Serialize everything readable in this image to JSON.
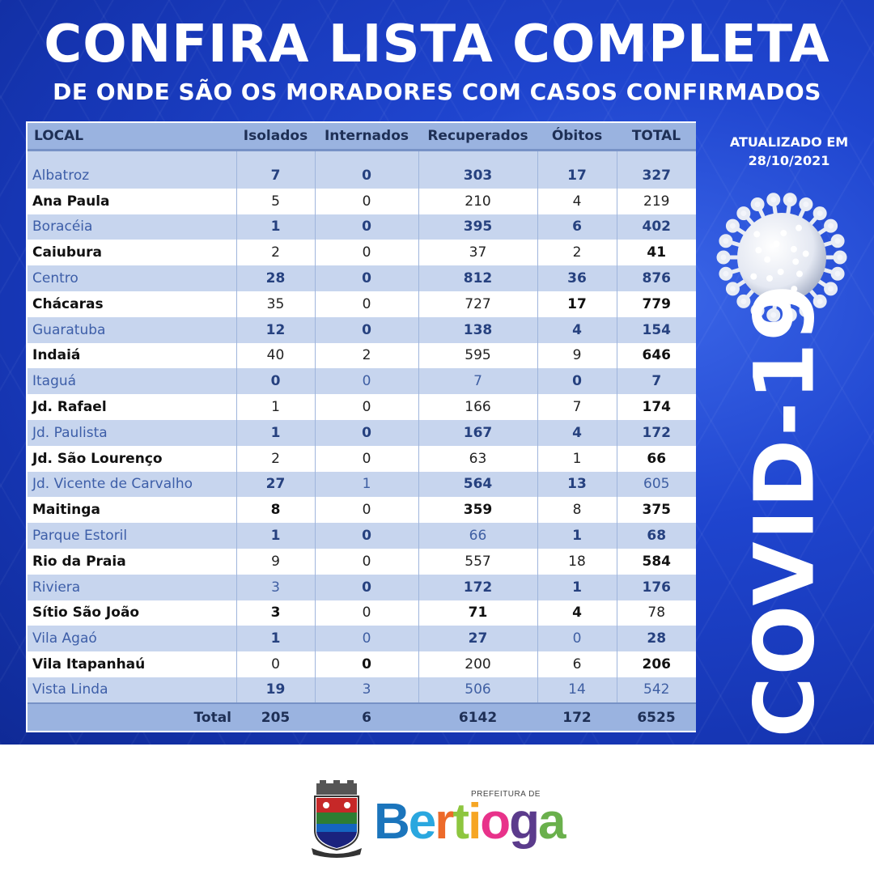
{
  "header": {
    "title": "CONFIRA LISTA COMPLETA",
    "subtitle": "DE ONDE SÃO OS MORADORES COM CASOS CONFIRMADOS"
  },
  "updated": {
    "line1": "ATUALIZADO EM",
    "line2": "28/10/2021"
  },
  "side_label": "COVID-19",
  "colors": {
    "banner": "#1f45cf",
    "table_header": "#9ab3e0",
    "row_alt": "#c7d5ee",
    "logo_b": "#1b75bc",
    "logo_e": "#2aa7df",
    "logo_r": "#ed6a2a",
    "logo_t": "#8dc63f",
    "logo_i": "#f6a623",
    "logo_o": "#e8328a",
    "logo_g": "#5b3b8c",
    "logo_a": "#6ab04c"
  },
  "table": {
    "headers": [
      "LOCAL",
      "Isolados",
      "Internados",
      "Recuperados",
      "Óbitos",
      "TOTAL"
    ],
    "rows": [
      {
        "local": "Albatroz",
        "isolados": "7",
        "internados": "0",
        "recuperados": "303",
        "obitos": "17",
        "total": "327"
      },
      {
        "local": "Ana Paula",
        "isolados": "5",
        "internados": "0",
        "recuperados": "210",
        "obitos": "4",
        "total": "219"
      },
      {
        "local": "Boracéia",
        "isolados": "1",
        "internados": "0",
        "recuperados": "395",
        "obitos": "6",
        "total": "402"
      },
      {
        "local": "Caiubura",
        "isolados": "2",
        "internados": "0",
        "recuperados": "37",
        "obitos": "2",
        "total": "41"
      },
      {
        "local": "Centro",
        "isolados": "28",
        "internados": "0",
        "recuperados": "812",
        "obitos": "36",
        "total": "876"
      },
      {
        "local": "Chácaras",
        "isolados": "35",
        "internados": "0",
        "recuperados": "727",
        "obitos": "17",
        "total": "779"
      },
      {
        "local": "Guaratuba",
        "isolados": "12",
        "internados": "0",
        "recuperados": "138",
        "obitos": "4",
        "total": "154"
      },
      {
        "local": "Indaiá",
        "isolados": "40",
        "internados": "2",
        "recuperados": "595",
        "obitos": "9",
        "total": "646"
      },
      {
        "local": "Itaguá",
        "isolados": "0",
        "internados": "0",
        "recuperados": "7",
        "obitos": "0",
        "total": "7"
      },
      {
        "local": "Jd. Rafael",
        "isolados": "1",
        "internados": "0",
        "recuperados": "166",
        "obitos": "7",
        "total": "174"
      },
      {
        "local": "Jd. Paulista",
        "isolados": "1",
        "internados": "0",
        "recuperados": "167",
        "obitos": "4",
        "total": "172"
      },
      {
        "local": "Jd. São Lourenço",
        "isolados": "2",
        "internados": "0",
        "recuperados": "63",
        "obitos": "1",
        "total": "66"
      },
      {
        "local": "Jd. Vicente de Carvalho",
        "isolados": "27",
        "internados": "1",
        "recuperados": "564",
        "obitos": "13",
        "total": "605"
      },
      {
        "local": "Maitinga",
        "isolados": "8",
        "internados": "0",
        "recuperados": "359",
        "obitos": "8",
        "total": "375"
      },
      {
        "local": "Parque Estoril",
        "isolados": "1",
        "internados": "0",
        "recuperados": "66",
        "obitos": "1",
        "total": "68"
      },
      {
        "local": "Rio da Praia",
        "isolados": "9",
        "internados": "0",
        "recuperados": "557",
        "obitos": "18",
        "total": "584"
      },
      {
        "local": "Riviera",
        "isolados": "3",
        "internados": "0",
        "recuperados": "172",
        "obitos": "1",
        "total": "176"
      },
      {
        "local": "Sítio São João",
        "isolados": "3",
        "internados": "0",
        "recuperados": "71",
        "obitos": "4",
        "total": "78"
      },
      {
        "local": "Vila Agaó",
        "isolados": "1",
        "internados": "0",
        "recuperados": "27",
        "obitos": "0",
        "total": "28"
      },
      {
        "local": "Vila Itapanhaú",
        "isolados": "0",
        "internados": "0",
        "recuperados": "200",
        "obitos": "6",
        "total": "206"
      },
      {
        "local": "Vista Linda",
        "isolados": "19",
        "internados": "3",
        "recuperados": "506",
        "obitos": "14",
        "total": "542"
      }
    ],
    "totals": {
      "label": "Total",
      "isolados": "205",
      "internados": "6",
      "recuperados": "6142",
      "obitos": "172",
      "total": "6525"
    }
  },
  "footer": {
    "logo_prefix": "PREFEITURA DE",
    "logo_letters": [
      "B",
      "e",
      "r",
      "t",
      "i",
      "o",
      "g",
      "a"
    ],
    "crest_icon": "municipal-crest-icon"
  }
}
